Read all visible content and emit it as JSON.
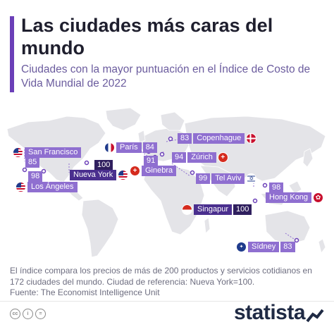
{
  "title": "Las ciudades más caras del mundo",
  "subtitle": "Ciudades con la mayor puntuación en el Índice de Costo de Vida Mundial de 2022",
  "cities": [
    {
      "name": "San Francisco",
      "score": "85"
    },
    {
      "name": "Los Ángeles",
      "score": "98"
    },
    {
      "name": "Nueva York",
      "score": "100"
    },
    {
      "name": "París",
      "score": "84"
    },
    {
      "name": "Ginebra",
      "score": "91"
    },
    {
      "name": "Zúrich",
      "score": "94"
    },
    {
      "name": "Copenhague",
      "score": "83"
    },
    {
      "name": "Tel Aviv",
      "score": "99"
    },
    {
      "name": "Hong Kong",
      "score": "98"
    },
    {
      "name": "Singapur",
      "score": "100"
    },
    {
      "name": "Sídney",
      "score": "83"
    }
  ],
  "footer": {
    "note": "El índice compara los precios de más de 200 productos y servicios cotidianos en 172 ciudades del mundo. Ciudad de referencia: Nueva York=100.",
    "source": "Fuente: The Economist Intelligence Unit"
  },
  "brand": "statista",
  "colors": {
    "accent": "#6b3fb8",
    "label": "#8f6fd0",
    "label_dark": "#2f1f5e",
    "map_land": "#e4e4e8"
  },
  "icons": [
    "us-flag-icon",
    "france-flag-icon",
    "switzerland-flag-icon",
    "denmark-flag-icon",
    "israel-flag-icon",
    "hong-kong-flag-icon",
    "singapore-flag-icon",
    "australia-flag-icon",
    "cc-icon",
    "person-icon",
    "equals-icon"
  ]
}
